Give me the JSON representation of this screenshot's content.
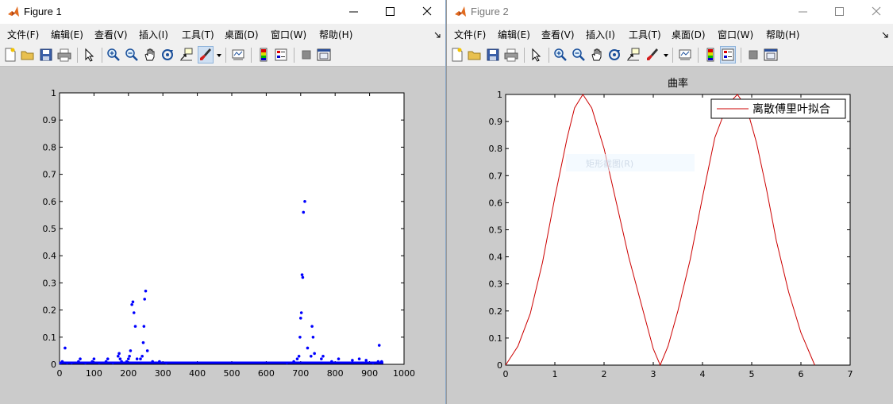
{
  "figure1": {
    "title": "Figure 1",
    "menu": [
      "文件(F)",
      "编辑(E)",
      "查看(V)",
      "插入(I)",
      "工具(T)",
      "桌面(D)",
      "窗口(W)",
      "帮助(H)"
    ],
    "colors": {
      "marker": "#0000ff",
      "axes_bg": "#ffffff"
    },
    "chart_data": {
      "type": "scatter",
      "xlim": [
        0,
        1000
      ],
      "ylim": [
        0,
        1
      ],
      "xticks": [
        "0",
        "100",
        "200",
        "300",
        "400",
        "500",
        "600",
        "700",
        "800",
        "900",
        "1000"
      ],
      "yticks": [
        "0",
        "0.1",
        "0.2",
        "0.3",
        "0.4",
        "0.5",
        "0.6",
        "0.7",
        "0.8",
        "0.9",
        "1"
      ],
      "series": [
        {
          "x": [
            3,
            8,
            16,
            22,
            35,
            55,
            60,
            75,
            95,
            100,
            115,
            135,
            140,
            155,
            170,
            173,
            176,
            180,
            195,
            200,
            203,
            206,
            210,
            213,
            216,
            220,
            225,
            235,
            240,
            243,
            245,
            247,
            250,
            255,
            270,
            290,
            310,
            660,
            680,
            690,
            695,
            698,
            700,
            702,
            704,
            706,
            708,
            712,
            720,
            730,
            733,
            736,
            740,
            760,
            765,
            790,
            810,
            850,
            870,
            890,
            910,
            925,
            928,
            935
          ],
          "y": [
            0.005,
            0.01,
            0.06,
            0.005,
            0.005,
            0.01,
            0.02,
            0.005,
            0.01,
            0.02,
            0.005,
            0.01,
            0.02,
            0.005,
            0.03,
            0.04,
            0.02,
            0.01,
            0.01,
            0.02,
            0.03,
            0.05,
            0.22,
            0.23,
            0.19,
            0.14,
            0.02,
            0.02,
            0.03,
            0.08,
            0.14,
            0.24,
            0.27,
            0.05,
            0.01,
            0.01,
            0.005,
            0.005,
            0.01,
            0.02,
            0.03,
            0.1,
            0.17,
            0.19,
            0.33,
            0.32,
            0.56,
            0.6,
            0.06,
            0.03,
            0.14,
            0.1,
            0.04,
            0.02,
            0.03,
            0.01,
            0.02,
            0.015,
            0.02,
            0.015,
            0.005,
            0.01,
            0.07,
            0.01
          ]
        }
      ]
    }
  },
  "figure2": {
    "title": "Figure 2",
    "menu": [
      "文件(F)",
      "编辑(E)",
      "查看(V)",
      "插入(I)",
      "工具(T)",
      "桌面(D)",
      "窗口(W)",
      "帮助(H)"
    ],
    "ghost_label": "矩形截图(R)",
    "colors": {
      "line": "#cc0000",
      "axes_bg": "#ffffff"
    },
    "chart_data": {
      "type": "line",
      "title": "曲率",
      "xlim": [
        0,
        7
      ],
      "ylim": [
        0,
        1
      ],
      "xticks": [
        "0",
        "1",
        "2",
        "3",
        "4",
        "5",
        "6",
        "7"
      ],
      "yticks": [
        "0",
        "0.1",
        "0.2",
        "0.3",
        "0.4",
        "0.5",
        "0.6",
        "0.7",
        "0.8",
        "0.9",
        "1"
      ],
      "legend": "top-right",
      "series": [
        {
          "name": "离散傅里叶拟合",
          "x": [
            0,
            0.25,
            0.5,
            0.75,
            1.0,
            1.25,
            1.4,
            1.57,
            1.75,
            2.0,
            2.25,
            2.5,
            2.75,
            3.0,
            3.14,
            3.3,
            3.5,
            3.75,
            4.0,
            4.25,
            4.5,
            4.71,
            4.9,
            5.1,
            5.3,
            5.5,
            5.75,
            6.0,
            6.28
          ],
          "y": [
            0,
            0.07,
            0.19,
            0.38,
            0.62,
            0.84,
            0.95,
            1.0,
            0.95,
            0.8,
            0.6,
            0.4,
            0.23,
            0.06,
            0,
            0.07,
            0.2,
            0.39,
            0.62,
            0.84,
            0.96,
            1.0,
            0.95,
            0.82,
            0.65,
            0.46,
            0.27,
            0.12,
            0
          ]
        }
      ]
    }
  }
}
